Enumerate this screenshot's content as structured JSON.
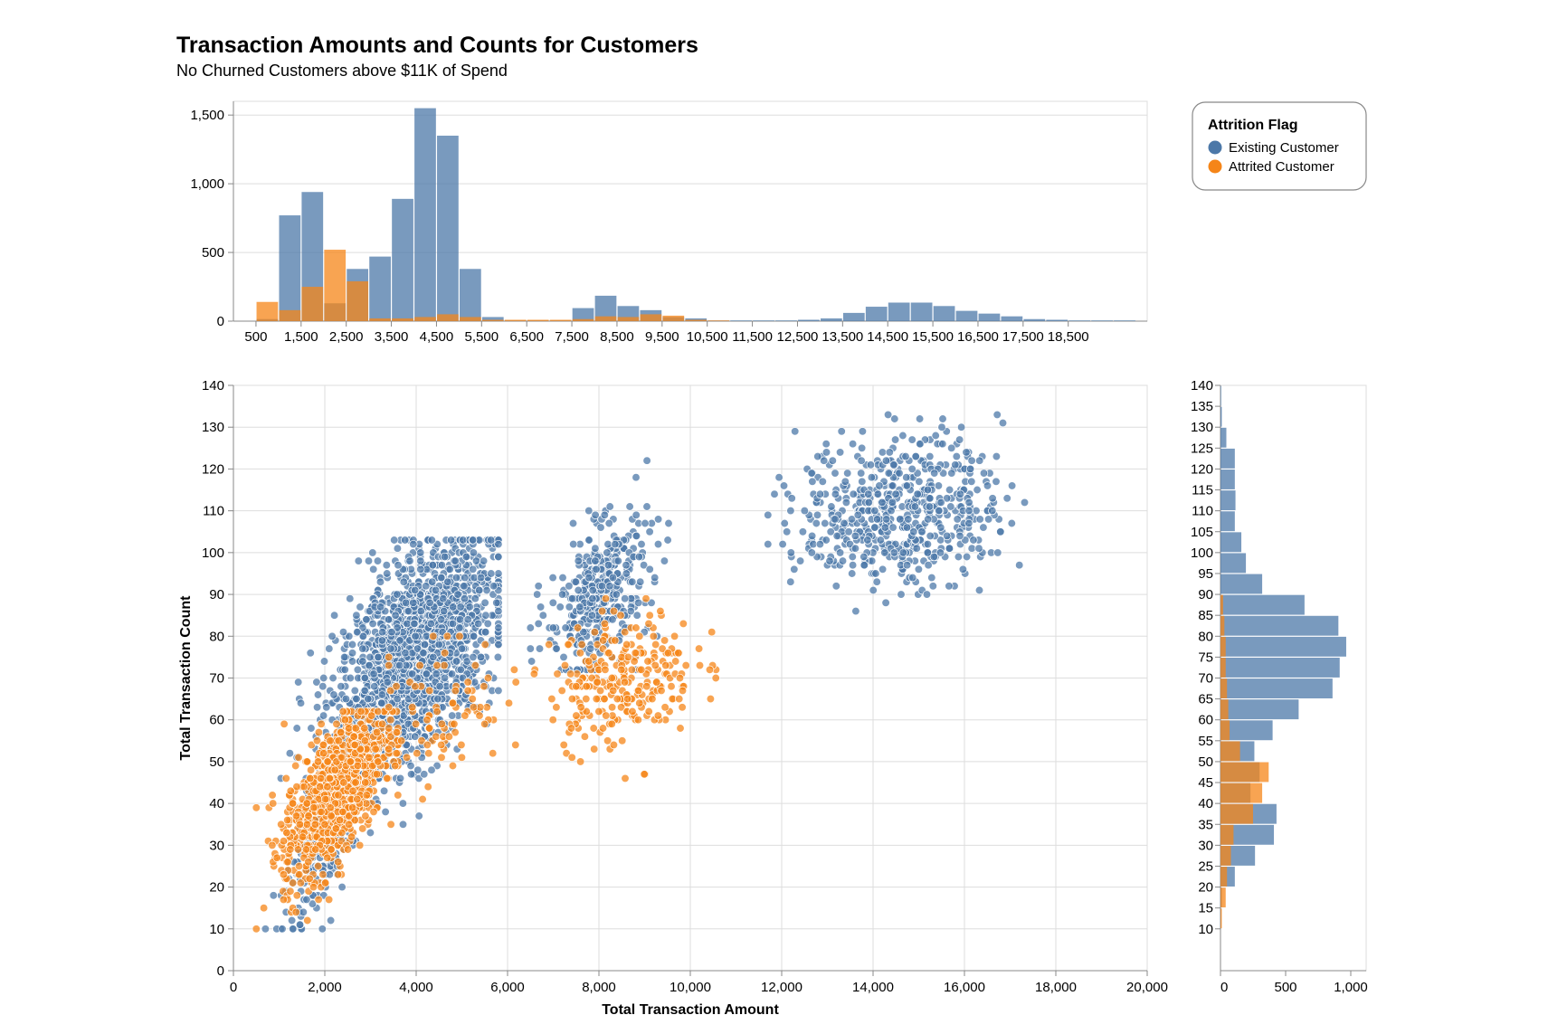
{
  "title": "Transaction Amounts and Counts for Customers",
  "subtitle": "No Churned Customers above $11K of Spend",
  "colors": {
    "existing": "#4c78a8",
    "attrited": "#f58518",
    "grid": "#dddddd",
    "axis": "#888888"
  },
  "legend": {
    "title": "Attrition Flag",
    "items": [
      {
        "label": "Existing Customer",
        "color": "#4c78a8"
      },
      {
        "label": "Attrited Customer",
        "color": "#f58518"
      }
    ]
  },
  "chart_data": [
    {
      "type": "bar",
      "name": "top-histogram",
      "x_bins_start": 0,
      "x_bin_width": 500,
      "x_ticks": [
        500,
        1500,
        2500,
        3500,
        4500,
        5500,
        6500,
        7500,
        8500,
        9500,
        10500,
        11500,
        12500,
        13500,
        14500,
        15500,
        16500,
        17500,
        18500
      ],
      "ylim": [
        0,
        1500
      ],
      "y_ticks": [
        0,
        500,
        1000,
        1500
      ],
      "series": [
        {
          "name": "Existing Customer",
          "values": [
            0,
            15,
            770,
            940,
            130,
            380,
            470,
            890,
            1550,
            1350,
            380,
            30,
            5,
            5,
            5,
            95,
            185,
            110,
            80,
            30,
            20,
            5,
            5,
            5,
            5,
            10,
            20,
            60,
            105,
            135,
            135,
            110,
            75,
            55,
            35,
            15,
            10,
            5,
            5,
            5,
            0,
            0
          ]
        },
        {
          "name": "Attrited Customer",
          "values": [
            0,
            140,
            80,
            250,
            520,
            290,
            20,
            20,
            30,
            50,
            30,
            10,
            10,
            10,
            10,
            15,
            35,
            30,
            50,
            40,
            10,
            5,
            0,
            0,
            0,
            0,
            0,
            0,
            0,
            0,
            0,
            0,
            0,
            0,
            0,
            0,
            0,
            0,
            0,
            0,
            0,
            0
          ]
        }
      ]
    },
    {
      "type": "scatter",
      "name": "main-scatter",
      "xlabel": "Total Transaction Amount",
      "ylabel": "Total Transaction Count",
      "xlim": [
        0,
        20000
      ],
      "ylim": [
        0,
        140
      ],
      "x_ticks": [
        0,
        2000,
        4000,
        6000,
        8000,
        10000,
        12000,
        14000,
        16000,
        18000,
        20000
      ],
      "y_ticks": [
        0,
        10,
        20,
        30,
        40,
        50,
        60,
        70,
        80,
        90,
        100,
        110,
        120,
        130,
        140
      ],
      "series": [
        {
          "name": "Existing Customer",
          "clusters": [
            {
              "cx": 4000,
              "cy": 75,
              "sx": 850,
              "sy": 13,
              "n": 1800,
              "corr": 0.5,
              "xmin": 1000,
              "xmax": 5800,
              "ymin": 15,
              "ymax": 103
            },
            {
              "cx": 2100,
              "cy": 38,
              "sx": 450,
              "sy": 13,
              "n": 380,
              "corr": 0.7,
              "xmin": 700,
              "xmax": 3600,
              "ymin": 10,
              "ymax": 65
            },
            {
              "cx": 8000,
              "cy": 90,
              "sx": 550,
              "sy": 9,
              "n": 380,
              "corr": 0.4,
              "xmin": 6500,
              "xmax": 9600,
              "ymin": 72,
              "ymax": 122
            },
            {
              "cx": 14600,
              "cy": 110,
              "sx": 1100,
              "sy": 9,
              "n": 560,
              "corr": 0.1,
              "xmin": 11700,
              "xmax": 18500,
              "ymin": 81,
              "ymax": 139
            }
          ]
        },
        {
          "name": "Attrited Customer",
          "clusters": [
            {
              "cx": 2200,
              "cy": 42,
              "sx": 550,
              "sy": 10,
              "n": 950,
              "corr": 0.6,
              "xmin": 500,
              "xmax": 3600,
              "ymin": 10,
              "ymax": 62
            },
            {
              "cx": 4500,
              "cy": 62,
              "sx": 700,
              "sy": 9,
              "n": 90,
              "corr": 0.3,
              "xmin": 3400,
              "xmax": 6200,
              "ymin": 40,
              "ymax": 80
            },
            {
              "cx": 8500,
              "cy": 70,
              "sx": 800,
              "sy": 8,
              "n": 260,
              "corr": 0.2,
              "xmin": 6000,
              "xmax": 10600,
              "ymin": 40,
              "ymax": 90
            }
          ]
        }
      ]
    },
    {
      "type": "bar",
      "name": "right-histogram",
      "orientation": "horizontal",
      "y_bins_start": 10,
      "y_bin_width": 5,
      "y_ticks": [
        10,
        15,
        20,
        25,
        30,
        35,
        40,
        45,
        50,
        55,
        60,
        65,
        70,
        75,
        80,
        85,
        90,
        95,
        100,
        105,
        110,
        115,
        120,
        125,
        130,
        135,
        140
      ],
      "xlim": [
        0,
        1000
      ],
      "x_ticks": [
        0,
        500,
        1000
      ],
      "series": [
        {
          "name": "Existing Customer",
          "values": [
            5,
            10,
            110,
            265,
            410,
            430,
            230,
            300,
            260,
            400,
            600,
            860,
            915,
            965,
            905,
            645,
            320,
            195,
            160,
            110,
            115,
            110,
            110,
            45,
            10,
            5
          ]
        },
        {
          "name": "Attrited Customer",
          "values": [
            10,
            40,
            50,
            80,
            100,
            250,
            320,
            370,
            150,
            70,
            60,
            50,
            40,
            40,
            30,
            20,
            0,
            0,
            0,
            0,
            0,
            0,
            0,
            0,
            0,
            0
          ]
        }
      ]
    }
  ]
}
